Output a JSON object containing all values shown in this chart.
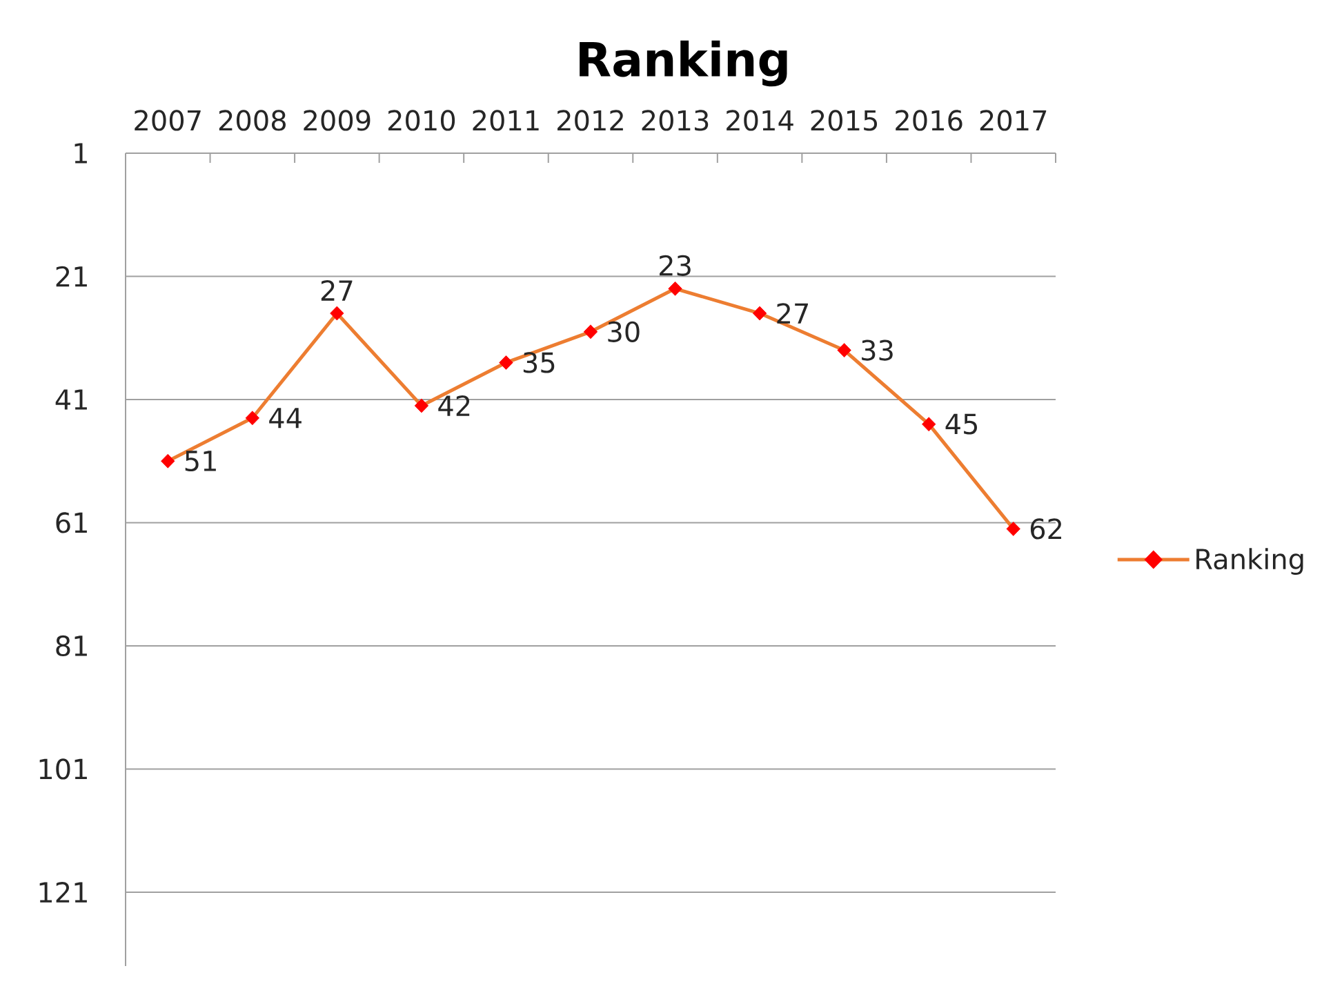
{
  "chart_data": {
    "type": "line",
    "title": "Ranking",
    "categories": [
      "2007",
      "2008",
      "2009",
      "2010",
      "2011",
      "2012",
      "2013",
      "2014",
      "2015",
      "2016",
      "2017"
    ],
    "series": [
      {
        "name": "Ranking",
        "color": "#ed7d31",
        "colors": [
          "#ff0000",
          "#ff0000",
          "#ff0000",
          "#ff0000",
          "#ff0000",
          "#ff0000",
          "#ff0000",
          "#ff0000",
          "#ff0000",
          "#ff0000",
          "#ff0000"
        ],
        "values": [
          51,
          44,
          27,
          42,
          35,
          30,
          23,
          27,
          33,
          45,
          62
        ]
      }
    ],
    "ylim": [
      133,
      1
    ],
    "yticks": [
      1,
      21,
      41,
      61,
      81,
      101,
      121
    ],
    "grid": "y",
    "legend": "right",
    "marker": "diamond",
    "line_style": "solid",
    "data_labels": true
  }
}
